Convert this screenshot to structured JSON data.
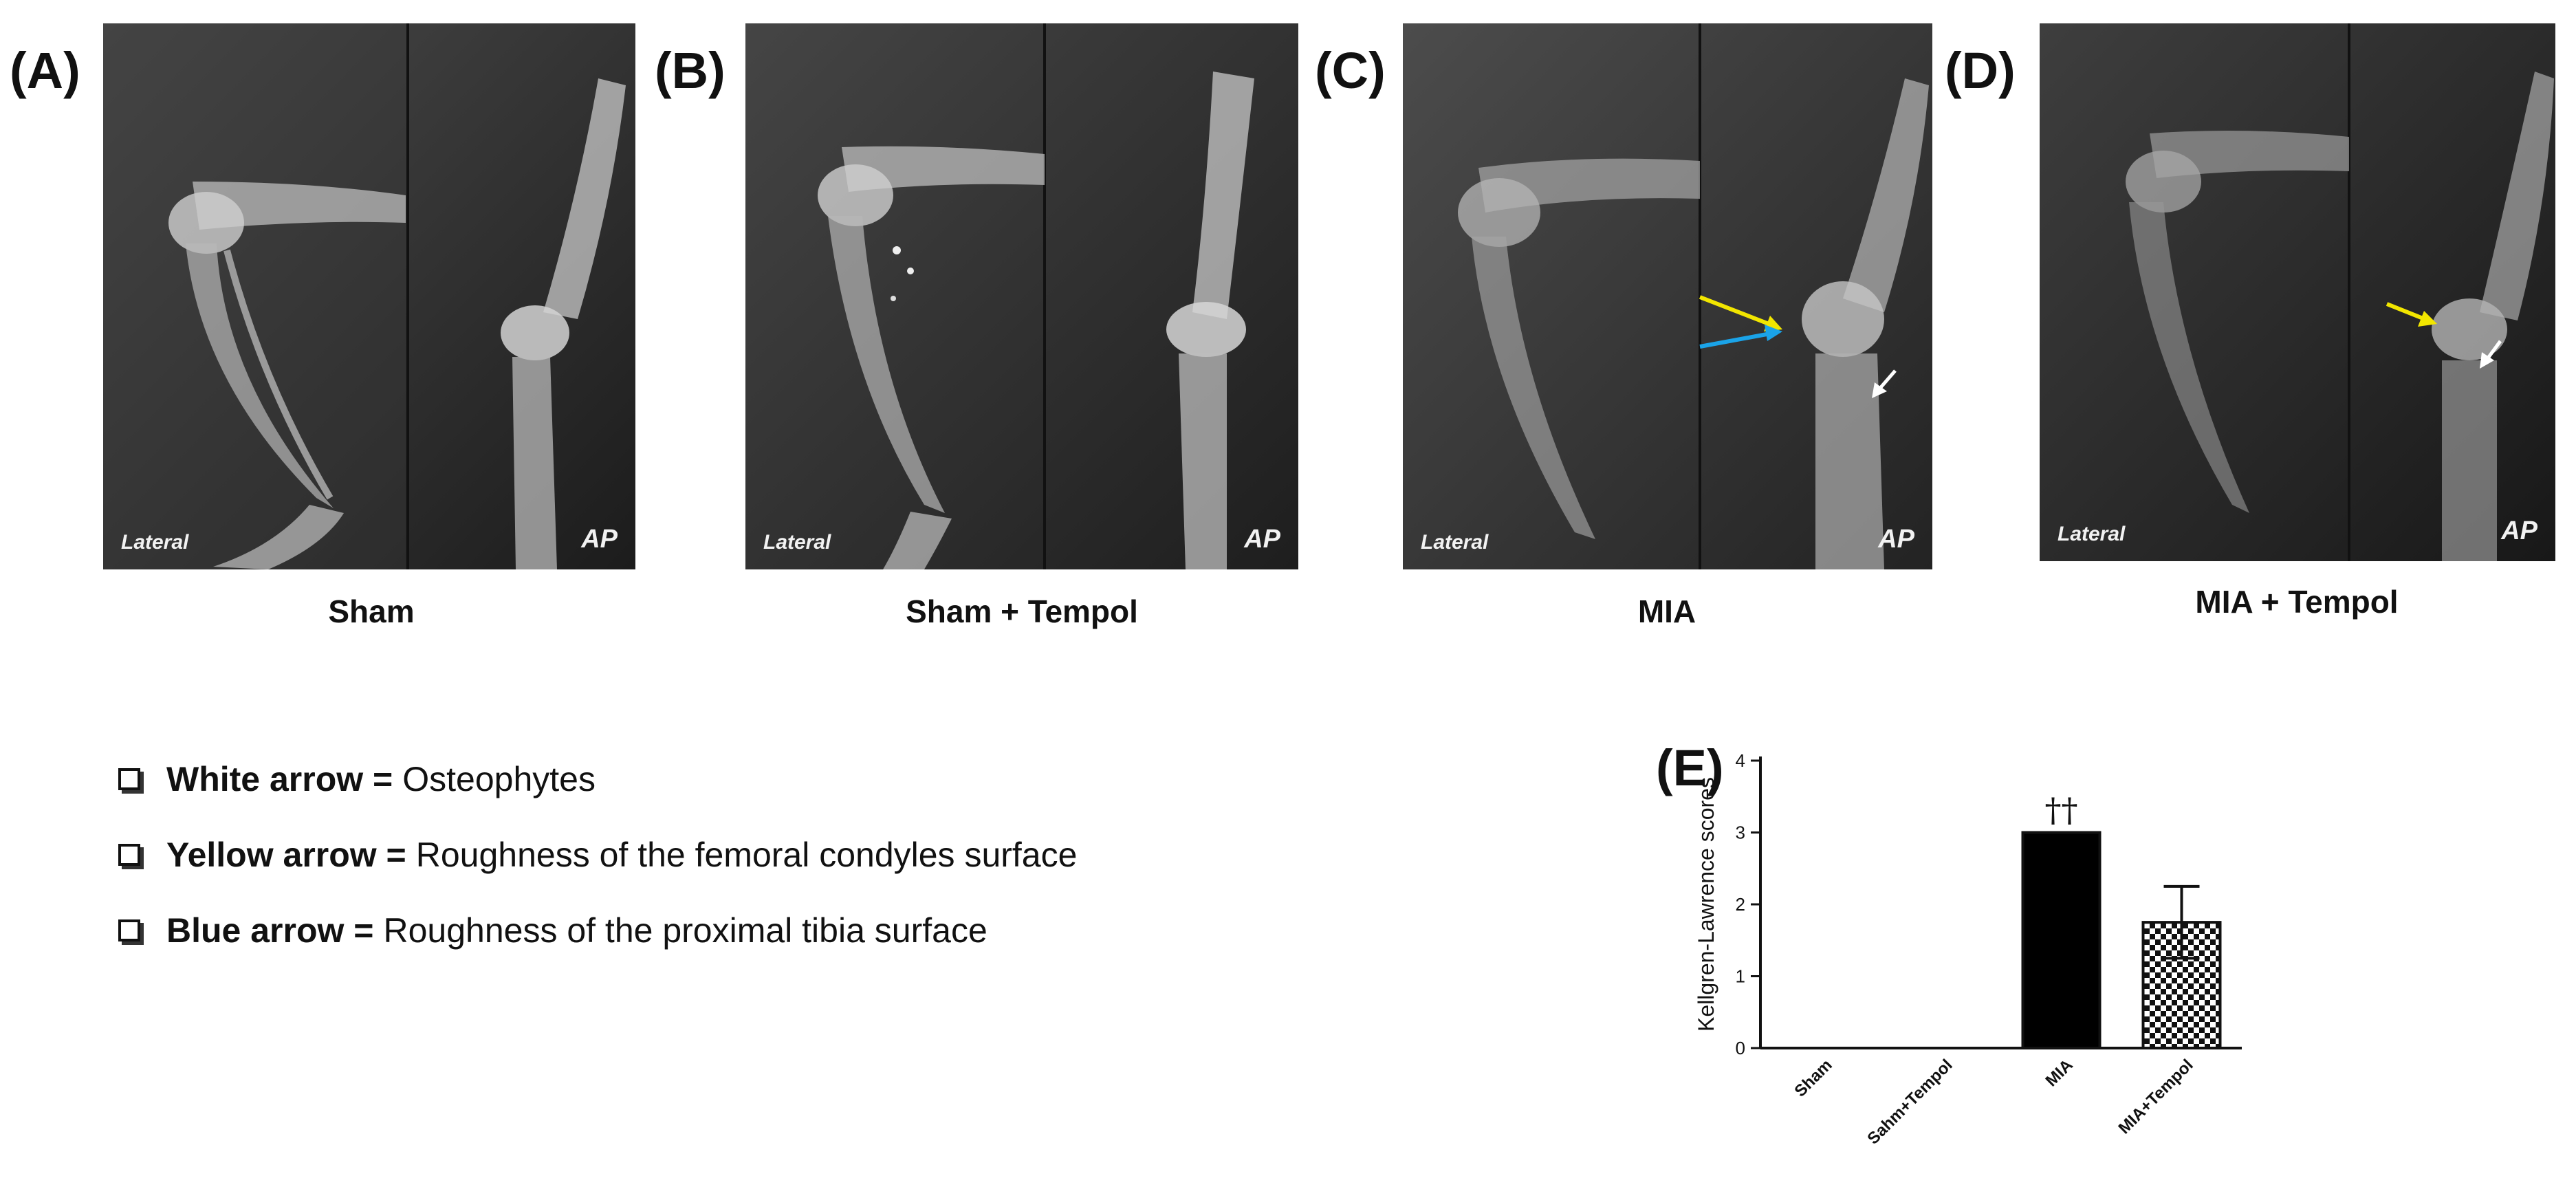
{
  "panels": [
    {
      "letter": "(A)",
      "caption": "Sham",
      "lateral_tag": "Lateral",
      "ap_tag": "AP"
    },
    {
      "letter": "(B)",
      "caption": "Sham + Tempol",
      "lateral_tag": "Lateral",
      "ap_tag": "AP"
    },
    {
      "letter": "(C)",
      "caption": "MIA",
      "lateral_tag": "Lateral",
      "ap_tag": "AP"
    },
    {
      "letter": "(D)",
      "caption": "MIA + Tempol",
      "lateral_tag": "Lateral",
      "ap_tag": "AP"
    }
  ],
  "legend": [
    {
      "term": "White arrow =",
      "desc": "Osteophytes"
    },
    {
      "term": "Yellow arrow =",
      "desc": "Roughness of the femoral condyles surface"
    },
    {
      "term": "Blue arrow =",
      "desc": "Roughness of the  proximal tibia surface"
    }
  ],
  "arrow_colors": {
    "white": "#ffffff",
    "yellow": "#f2e600",
    "blue": "#1aa3e8"
  },
  "chart_data": {
    "panel_letter": "(E)",
    "type": "bar",
    "categories": [
      "Sham",
      "Sahm+Tempol",
      "MIA",
      "MIA+Tempol"
    ],
    "values": [
      0,
      0,
      3,
      1.75
    ],
    "errors": [
      0,
      0,
      0,
      0.5
    ],
    "bar_fills": [
      "solid",
      "solid",
      "solid",
      "checkered"
    ],
    "annotations": [
      "",
      "",
      "††",
      ""
    ],
    "ylabel": "Kellgren-Lawrence scores",
    "ylim": [
      0,
      4
    ],
    "yticks": [
      "0",
      "1",
      "2",
      "3",
      "4"
    ],
    "grid": false
  }
}
